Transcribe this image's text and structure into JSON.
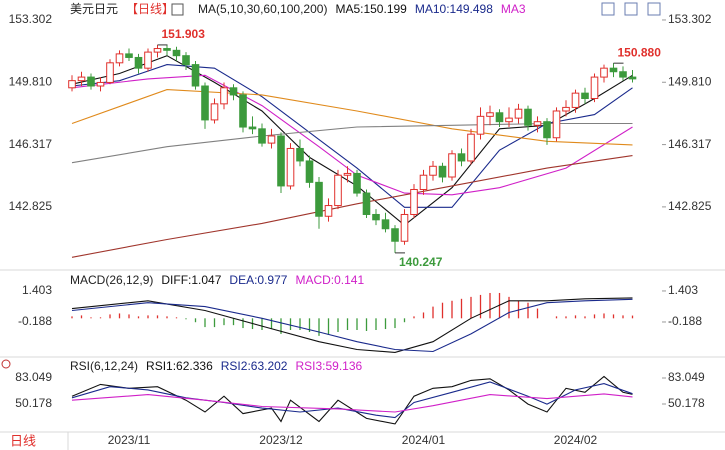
{
  "period_label": "日线",
  "chart_data": [
    {
      "type": "candlestick",
      "title": "美元日元",
      "subtitle": "【日线】",
      "indicator": "MA(5,10,30,60,100,200)",
      "up_color": "#e0302c",
      "down_color": "#3c9a3c",
      "categories": [
        null,
        null,
        null,
        null,
        null,
        null,
        "2023/11",
        null,
        null,
        null,
        null,
        null,
        null,
        null,
        null,
        null,
        null,
        null,
        null,
        null,
        null,
        null,
        "2023/12",
        null,
        null,
        null,
        null,
        null,
        null,
        null,
        null,
        null,
        null,
        null,
        null,
        null,
        null,
        "2024/01",
        null,
        null,
        null,
        null,
        null,
        null,
        null,
        null,
        null,
        null,
        null,
        null,
        null,
        null,
        null,
        "2024/02",
        null,
        null,
        null,
        null,
        null,
        null
      ],
      "candles": [
        [
          149.5,
          150.2,
          149.3,
          149.9
        ],
        [
          149.9,
          150.4,
          149.6,
          150.1
        ],
        [
          150.1,
          150.3,
          149.4,
          149.6
        ],
        [
          149.6,
          150.1,
          149.3,
          149.8
        ],
        [
          149.8,
          151.1,
          149.7,
          150.9
        ],
        [
          150.9,
          151.6,
          150.7,
          151.4
        ],
        [
          151.4,
          151.7,
          151.0,
          151.2
        ],
        [
          151.2,
          151.4,
          150.3,
          150.6
        ],
        [
          150.6,
          151.7,
          150.4,
          151.5
        ],
        [
          151.5,
          151.903,
          151.2,
          151.7
        ],
        [
          151.7,
          151.9,
          151.3,
          151.6
        ],
        [
          151.6,
          151.8,
          151.0,
          151.3
        ],
        [
          151.3,
          151.5,
          150.5,
          150.8
        ],
        [
          150.8,
          151.0,
          149.4,
          149.6
        ],
        [
          149.6,
          149.8,
          147.2,
          147.7
        ],
        [
          147.7,
          148.9,
          147.5,
          148.6
        ],
        [
          148.6,
          149.8,
          148.3,
          149.5
        ],
        [
          149.5,
          149.7,
          148.8,
          149.1
        ],
        [
          149.1,
          149.3,
          147.0,
          147.3
        ],
        [
          147.3,
          147.9,
          146.9,
          147.2
        ],
        [
          147.2,
          147.5,
          146.2,
          146.4
        ],
        [
          146.4,
          147.2,
          146.1,
          146.8
        ],
        [
          146.8,
          147.0,
          143.6,
          144.0
        ],
        [
          144.0,
          146.4,
          143.8,
          146.1
        ],
        [
          146.1,
          146.6,
          145.1,
          145.4
        ],
        [
          145.4,
          145.7,
          143.9,
          144.2
        ],
        [
          144.2,
          144.5,
          141.6,
          142.3
        ],
        [
          142.3,
          143.3,
          142.0,
          142.9
        ],
        [
          142.9,
          144.9,
          142.7,
          144.6
        ],
        [
          144.6,
          145.1,
          144.2,
          144.7
        ],
        [
          144.7,
          144.9,
          143.4,
          143.6
        ],
        [
          143.6,
          143.8,
          142.2,
          142.4
        ],
        [
          142.4,
          142.7,
          141.8,
          142.1
        ],
        [
          142.1,
          142.5,
          141.4,
          141.6
        ],
        [
          141.6,
          141.8,
          140.247,
          140.9
        ],
        [
          140.9,
          142.7,
          140.7,
          142.4
        ],
        [
          142.4,
          144.1,
          142.2,
          143.8
        ],
        [
          143.8,
          144.9,
          143.5,
          144.6
        ],
        [
          144.6,
          145.4,
          144.3,
          145.1
        ],
        [
          145.1,
          145.3,
          144.2,
          144.5
        ],
        [
          144.5,
          146.0,
          144.3,
          145.8
        ],
        [
          145.8,
          146.1,
          145.1,
          145.4
        ],
        [
          145.4,
          147.2,
          145.2,
          146.9
        ],
        [
          146.9,
          148.4,
          146.6,
          147.9
        ],
        [
          147.9,
          148.5,
          147.4,
          148.1
        ],
        [
          148.1,
          148.3,
          147.3,
          147.6
        ],
        [
          147.6,
          148.4,
          147.3,
          147.8
        ],
        [
          147.8,
          148.6,
          147.5,
          148.3
        ],
        [
          148.3,
          148.5,
          147.1,
          147.4
        ],
        [
          147.4,
          147.9,
          147.0,
          147.6
        ],
        [
          147.6,
          147.8,
          146.3,
          146.7
        ],
        [
          146.7,
          148.4,
          146.5,
          148.2
        ],
        [
          148.2,
          148.8,
          147.9,
          148.4
        ],
        [
          148.4,
          149.4,
          148.1,
          149.2
        ],
        [
          149.2,
          149.5,
          148.6,
          148.9
        ],
        [
          148.9,
          150.3,
          148.7,
          150.1
        ],
        [
          150.1,
          150.8,
          149.8,
          150.6
        ],
        [
          150.6,
          150.88,
          150.1,
          150.4
        ],
        [
          150.4,
          150.7,
          149.9,
          150.1
        ],
        [
          150.1,
          150.5,
          149.8,
          150.0
        ]
      ],
      "series": [
        {
          "name": "MA5:150.199",
          "color": "#111111",
          "x": [
            0,
            5,
            10,
            15,
            20,
            25,
            30,
            35,
            40,
            45,
            50,
            55,
            59
          ],
          "values": [
            149.7,
            150.3,
            151.3,
            149.8,
            148.2,
            145.6,
            144.0,
            141.8,
            143.9,
            147.2,
            147.4,
            148.9,
            150.199
          ]
        },
        {
          "name": "MA10:149.498",
          "color": "#1a2a8c",
          "x": [
            0,
            5,
            10,
            15,
            20,
            25,
            30,
            35,
            40,
            45,
            50,
            55,
            59
          ],
          "values": [
            149.6,
            149.9,
            150.8,
            150.6,
            149.0,
            147.0,
            145.0,
            142.8,
            142.8,
            146.0,
            147.5,
            148.0,
            149.498
          ]
        },
        {
          "name": "MA3",
          "color": "#d020c8",
          "x": [
            0,
            8,
            14,
            20,
            26,
            30,
            35,
            40,
            45,
            52,
            59
          ],
          "values": [
            149.5,
            150.0,
            150.2,
            148.5,
            146.2,
            144.6,
            143.6,
            143.5,
            143.9,
            145.0,
            147.3
          ]
        },
        {
          "color": "#e08a1c",
          "x": [
            0,
            10,
            20,
            30,
            40,
            50,
            59
          ],
          "values": [
            147.5,
            149.4,
            149.1,
            148.2,
            147.2,
            146.5,
            146.3
          ]
        },
        {
          "color": "#808080",
          "x": [
            0,
            10,
            20,
            30,
            40,
            50,
            59
          ],
          "values": [
            145.3,
            146.2,
            146.8,
            147.3,
            147.4,
            147.5,
            147.5
          ]
        },
        {
          "color": "#a0352c",
          "x": [
            0,
            10,
            20,
            30,
            40,
            50,
            59
          ],
          "values": [
            140.0,
            141.0,
            141.9,
            143.0,
            144.0,
            145.0,
            145.7
          ]
        }
      ],
      "annotations": [
        {
          "x": 9,
          "value": 151.903,
          "label": "151.903",
          "color": "#e0302c"
        },
        {
          "x": 57,
          "value": 150.88,
          "label": "150.880",
          "color": "#e0302c"
        },
        {
          "x": 34,
          "value": 140.247,
          "label": "140.247",
          "color": "#3c9a3c"
        }
      ],
      "ylim": [
        139.4,
        153.86
      ],
      "yticks": [
        153.302,
        {
          "value": 149.81,
          "label": "149.810"
        },
        146.317,
        142.825
      ]
    },
    {
      "type": "macd",
      "title": "MACD(26,12,9)",
      "up_color": "#e0302c",
      "down_color": "#3c9a3c",
      "series": [
        {
          "name": "DIFF:1.047",
          "color": "#111111",
          "x": [
            0,
            8,
            14,
            20,
            26,
            30,
            34,
            38,
            42,
            46,
            50,
            54,
            59
          ],
          "values": [
            0.5,
            0.9,
            0.4,
            -0.4,
            -1.2,
            -1.6,
            -1.75,
            -1.2,
            0.0,
            0.9,
            0.9,
            1.0,
            1.047
          ]
        },
        {
          "name": "DEA:0.977",
          "color": "#1a2a8c",
          "x": [
            0,
            8,
            14,
            20,
            26,
            30,
            34,
            38,
            42,
            46,
            50,
            54,
            59
          ],
          "values": [
            0.4,
            0.8,
            0.6,
            0.0,
            -0.7,
            -1.2,
            -1.6,
            -1.7,
            -0.8,
            0.3,
            0.8,
            0.9,
            0.977
          ]
        }
      ],
      "histogram": {
        "name": "MACD:0.141",
        "color": "#d020c8",
        "values": [
          0.1,
          0.15,
          0.05,
          0.05,
          0.2,
          0.25,
          0.2,
          0.1,
          0.15,
          0.15,
          0.1,
          0.05,
          -0.05,
          -0.2,
          -0.45,
          -0.45,
          -0.35,
          -0.35,
          -0.5,
          -0.55,
          -0.6,
          -0.55,
          -0.8,
          -0.6,
          -0.6,
          -0.7,
          -0.9,
          -0.85,
          -0.7,
          -0.6,
          -0.6,
          -0.65,
          -0.6,
          -0.55,
          -0.5,
          -0.2,
          0.1,
          0.3,
          0.6,
          0.8,
          0.9,
          1.0,
          1.1,
          1.2,
          1.3,
          1.3,
          1.1,
          0.9,
          0.8,
          0.5,
          0.0,
          0.1,
          0.1,
          0.15,
          0.1,
          0.2,
          0.25,
          0.2,
          0.15,
          0.141
        ]
      },
      "ylim": [
        -1.83,
        2.17
      ],
      "yticks": [
        1.403,
        -0.188
      ]
    },
    {
      "type": "rsi",
      "title": "RSI(6,12,24)",
      "series": [
        {
          "name": "RSI1:62.336",
          "color": "#111111",
          "x": [
            0,
            3,
            6,
            9,
            12,
            14,
            16,
            18,
            21,
            22,
            23,
            26,
            28,
            31,
            34,
            36,
            38,
            40,
            42,
            44,
            46,
            48,
            50,
            52,
            54,
            56,
            58,
            59
          ],
          "values": [
            60,
            75,
            70,
            72,
            55,
            40,
            60,
            38,
            45,
            28,
            55,
            28,
            55,
            32,
            25,
            60,
            70,
            72,
            80,
            82,
            68,
            50,
            40,
            70,
            65,
            85,
            65,
            62.336
          ]
        },
        {
          "name": "RSI2:63.202",
          "color": "#1a2a8c",
          "x": [
            0,
            4,
            8,
            12,
            16,
            20,
            24,
            28,
            32,
            34,
            36,
            40,
            44,
            48,
            50,
            53,
            56,
            59
          ],
          "values": [
            58,
            72,
            68,
            58,
            52,
            45,
            40,
            45,
            36,
            33,
            52,
            65,
            78,
            60,
            50,
            68,
            76,
            63.202
          ]
        },
        {
          "name": "RSI3:59.136",
          "color": "#d020c8",
          "x": [
            0,
            8,
            14,
            20,
            28,
            34,
            38,
            44,
            50,
            56,
            59
          ],
          "values": [
            55,
            62,
            55,
            47,
            44,
            40,
            48,
            62,
            57,
            63,
            59.136
          ]
        }
      ],
      "ylim": [
        19.8,
        103.3
      ],
      "yticks": [
        83.049,
        50.178
      ]
    }
  ]
}
